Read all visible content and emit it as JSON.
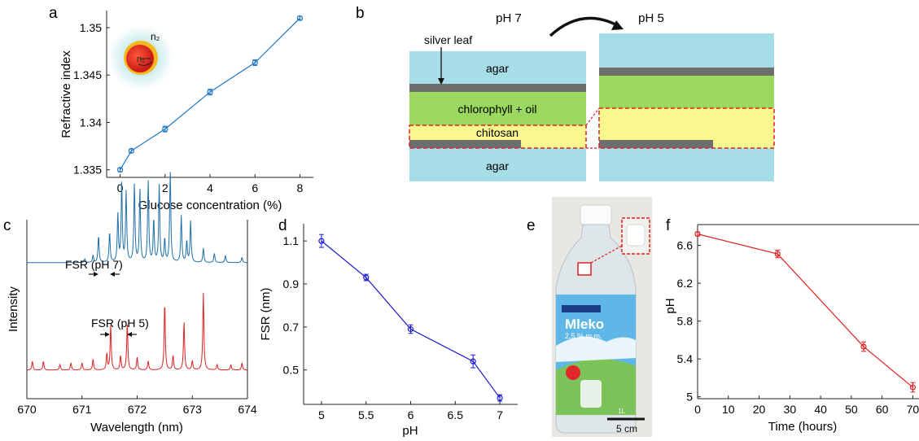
{
  "panels": {
    "a": {
      "letter": "a",
      "inset": {
        "n2": "n₂",
        "n1": "n₁",
        "core_color": "#e8271b",
        "shell_color": "#f5b81c",
        "halo_color": "#8fd3d6"
      }
    },
    "b": {
      "letter": "b",
      "ph_left": "pH 7",
      "ph_right": "pH 5",
      "labels": {
        "silver_leaf": "silver leaf",
        "agar_top": "agar",
        "chlorophyll": "chlorophyll + oil",
        "chitosan": "chitosan",
        "agar_bottom": "agar"
      },
      "colors": {
        "agar": "#a7dde6",
        "silver": "#6e6e6e",
        "chlorophyll": "#9bd860",
        "chitosan": "#fbf78f",
        "dash": "#e02020"
      }
    },
    "c": {
      "letter": "c"
    },
    "d": {
      "letter": "d"
    },
    "e": {
      "letter": "e",
      "bottle_brand": "Mleko",
      "bottle_fat": "2,5 % m.m.",
      "bottle_volume": "1L",
      "scale_bar": "5 cm"
    },
    "f": {
      "letter": "f"
    }
  },
  "chart_data": [
    {
      "panel": "a",
      "type": "line",
      "xlabel": "Glucose concentration (%)",
      "ylabel": "Refractive index",
      "xlim": [
        -0.6,
        8.6
      ],
      "ylim": [
        1.3342,
        1.3518
      ],
      "xticks": [
        "0",
        "2",
        "4",
        "6",
        "8"
      ],
      "xtick_values": [
        0,
        2,
        4,
        6,
        8
      ],
      "yticks": [
        "1.335",
        "1.34",
        "1.345",
        "1.35"
      ],
      "ytick_values": [
        1.335,
        1.34,
        1.345,
        1.35
      ],
      "x": [
        0,
        0.5,
        2,
        4,
        6,
        8
      ],
      "y": [
        1.335,
        1.337,
        1.3393,
        1.3432,
        1.3463,
        1.351
      ],
      "err": [
        0.0002,
        0.0002,
        0.0003,
        0.0003,
        0.0003,
        0.0002
      ],
      "color": "#1f77c4"
    },
    {
      "panel": "c",
      "type": "line",
      "xlabel": "Wavelength (nm)",
      "ylabel": "Intensity",
      "xlim": [
        670,
        674
      ],
      "xticks": [
        "670",
        "671",
        "672",
        "673",
        "674"
      ],
      "xtick_values": [
        670,
        671,
        672,
        673,
        674
      ],
      "annotations": [
        "FSR (pH 7)",
        "FSR (pH 5)"
      ],
      "series": [
        {
          "color": "#1f6fa8",
          "baseline": 0.76,
          "peaks": [
            [
              671.05,
              0.02
            ],
            [
              671.2,
              0.04
            ],
            [
              671.3,
              0.15
            ],
            [
              671.5,
              0.17
            ],
            [
              671.65,
              0.27
            ],
            [
              671.72,
              0.44
            ],
            [
              671.8,
              0.39
            ],
            [
              671.95,
              0.44
            ],
            [
              672.05,
              0.41
            ],
            [
              672.2,
              0.45
            ],
            [
              672.3,
              0.24
            ],
            [
              672.4,
              0.43
            ],
            [
              672.5,
              0.13
            ],
            [
              672.6,
              0.5
            ],
            [
              672.8,
              0.26
            ],
            [
              672.9,
              0.12
            ],
            [
              672.97,
              0.23
            ],
            [
              673.2,
              0.08
            ],
            [
              673.4,
              0.05
            ],
            [
              673.6,
              0.04
            ],
            [
              673.9,
              0.03
            ]
          ]
        },
        {
          "color": "#e02020",
          "baseline": 0.16,
          "peaks": [
            [
              670.1,
              0.05
            ],
            [
              670.3,
              0.05
            ],
            [
              670.6,
              0.03
            ],
            [
              670.8,
              0.04
            ],
            [
              671.0,
              0.04
            ],
            [
              671.2,
              0.06
            ],
            [
              671.45,
              0.09
            ],
            [
              671.52,
              0.25
            ],
            [
              671.7,
              0.08
            ],
            [
              671.82,
              0.26
            ],
            [
              672.0,
              0.07
            ],
            [
              672.2,
              0.05
            ],
            [
              672.5,
              0.38
            ],
            [
              672.65,
              0.08
            ],
            [
              672.85,
              0.27
            ],
            [
              673.0,
              0.05
            ],
            [
              673.2,
              0.43
            ],
            [
              673.45,
              0.03
            ],
            [
              673.7,
              0.03
            ],
            [
              673.9,
              0.04
            ]
          ]
        }
      ]
    },
    {
      "panel": "d",
      "type": "line",
      "xlabel": "pH",
      "ylabel": "FSR (nm)",
      "xlim": [
        4.8,
        7.2
      ],
      "ylim": [
        0.34,
        1.18
      ],
      "xticks": [
        "5",
        "5.5",
        "6",
        "6.5",
        "7"
      ],
      "xtick_values": [
        5,
        5.5,
        6,
        6.5,
        7
      ],
      "yticks": [
        "0.5",
        "0.7",
        "0.9",
        "1.1"
      ],
      "ytick_values": [
        0.5,
        0.7,
        0.9,
        1.1
      ],
      "x": [
        5,
        5.5,
        6,
        6.7,
        7
      ],
      "y": [
        1.1,
        0.93,
        0.69,
        0.54,
        0.37
      ],
      "err": [
        0.03,
        0.015,
        0.02,
        0.03,
        0.015
      ],
      "color": "#1a1ad6"
    },
    {
      "panel": "f",
      "type": "line",
      "xlabel": "Time (hours)",
      "ylabel": "pH",
      "xlim": [
        0,
        72
      ],
      "ylim": [
        4.98,
        6.82
      ],
      "xticks": [
        "0",
        "10",
        "20",
        "30",
        "40",
        "50",
        "60",
        "70"
      ],
      "xtick_values": [
        0,
        10,
        20,
        30,
        40,
        50,
        60,
        70
      ],
      "yticks": [
        "5",
        "5.4",
        "5.8",
        "6.2",
        "6.6"
      ],
      "ytick_values": [
        5,
        5.4,
        5.8,
        6.2,
        6.6
      ],
      "x": [
        0,
        26,
        54,
        70
      ],
      "y": [
        6.72,
        6.51,
        5.53,
        5.1
      ],
      "err": [
        0.02,
        0.04,
        0.05,
        0.05
      ],
      "color": "#e02020"
    }
  ]
}
